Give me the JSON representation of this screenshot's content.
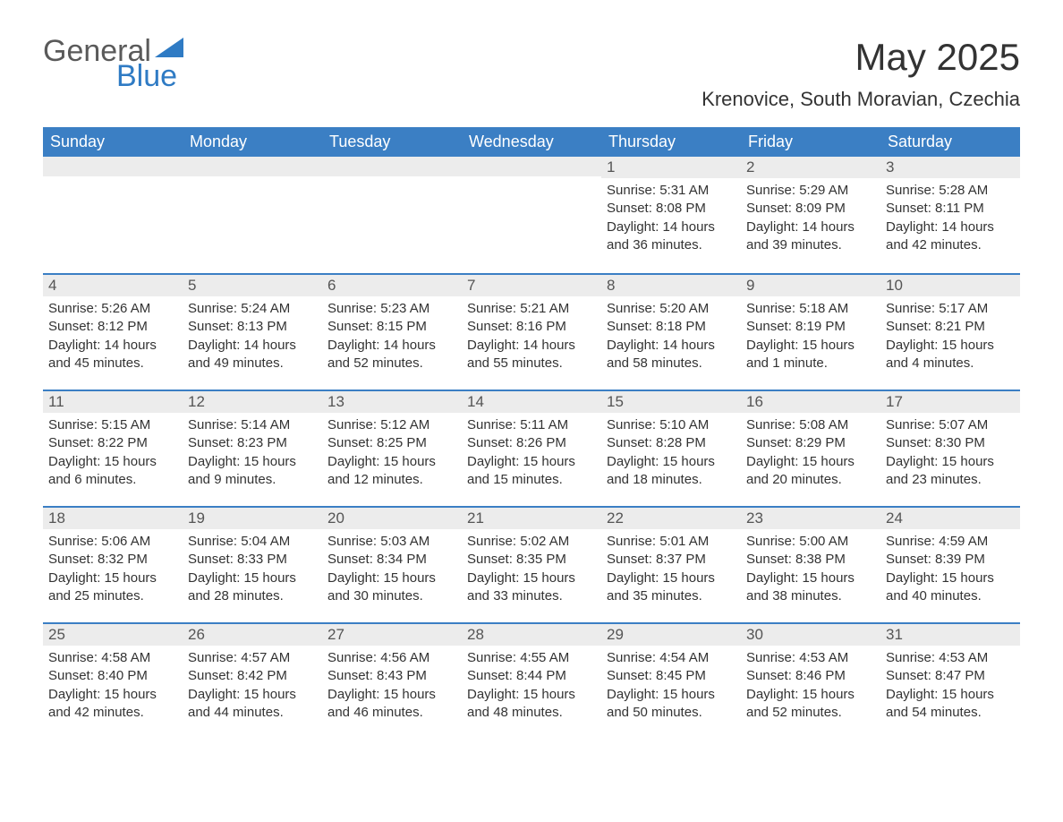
{
  "logo": {
    "word1": "General",
    "word2": "Blue",
    "triangle_color": "#2f7bc4"
  },
  "title": "May 2025",
  "location": "Krenovice, South Moravian, Czechia",
  "colors": {
    "header_bg": "#3b7fc4",
    "header_text": "#ffffff",
    "daybar_bg": "#ececec",
    "daybar_border": "#3b7fc4",
    "body_text": "#333333",
    "page_bg": "#ffffff"
  },
  "weekdays": [
    "Sunday",
    "Monday",
    "Tuesday",
    "Wednesday",
    "Thursday",
    "Friday",
    "Saturday"
  ],
  "labels": {
    "sunrise": "Sunrise:",
    "sunset": "Sunset:",
    "daylight": "Daylight:"
  },
  "weeks": [
    [
      null,
      null,
      null,
      null,
      {
        "day": "1",
        "sunrise": "5:31 AM",
        "sunset": "8:08 PM",
        "dl1": "14 hours",
        "dl2": "and 36 minutes."
      },
      {
        "day": "2",
        "sunrise": "5:29 AM",
        "sunset": "8:09 PM",
        "dl1": "14 hours",
        "dl2": "and 39 minutes."
      },
      {
        "day": "3",
        "sunrise": "5:28 AM",
        "sunset": "8:11 PM",
        "dl1": "14 hours",
        "dl2": "and 42 minutes."
      }
    ],
    [
      {
        "day": "4",
        "sunrise": "5:26 AM",
        "sunset": "8:12 PM",
        "dl1": "14 hours",
        "dl2": "and 45 minutes."
      },
      {
        "day": "5",
        "sunrise": "5:24 AM",
        "sunset": "8:13 PM",
        "dl1": "14 hours",
        "dl2": "and 49 minutes."
      },
      {
        "day": "6",
        "sunrise": "5:23 AM",
        "sunset": "8:15 PM",
        "dl1": "14 hours",
        "dl2": "and 52 minutes."
      },
      {
        "day": "7",
        "sunrise": "5:21 AM",
        "sunset": "8:16 PM",
        "dl1": "14 hours",
        "dl2": "and 55 minutes."
      },
      {
        "day": "8",
        "sunrise": "5:20 AM",
        "sunset": "8:18 PM",
        "dl1": "14 hours",
        "dl2": "and 58 minutes."
      },
      {
        "day": "9",
        "sunrise": "5:18 AM",
        "sunset": "8:19 PM",
        "dl1": "15 hours",
        "dl2": "and 1 minute."
      },
      {
        "day": "10",
        "sunrise": "5:17 AM",
        "sunset": "8:21 PM",
        "dl1": "15 hours",
        "dl2": "and 4 minutes."
      }
    ],
    [
      {
        "day": "11",
        "sunrise": "5:15 AM",
        "sunset": "8:22 PM",
        "dl1": "15 hours",
        "dl2": "and 6 minutes."
      },
      {
        "day": "12",
        "sunrise": "5:14 AM",
        "sunset": "8:23 PM",
        "dl1": "15 hours",
        "dl2": "and 9 minutes."
      },
      {
        "day": "13",
        "sunrise": "5:12 AM",
        "sunset": "8:25 PM",
        "dl1": "15 hours",
        "dl2": "and 12 minutes."
      },
      {
        "day": "14",
        "sunrise": "5:11 AM",
        "sunset": "8:26 PM",
        "dl1": "15 hours",
        "dl2": "and 15 minutes."
      },
      {
        "day": "15",
        "sunrise": "5:10 AM",
        "sunset": "8:28 PM",
        "dl1": "15 hours",
        "dl2": "and 18 minutes."
      },
      {
        "day": "16",
        "sunrise": "5:08 AM",
        "sunset": "8:29 PM",
        "dl1": "15 hours",
        "dl2": "and 20 minutes."
      },
      {
        "day": "17",
        "sunrise": "5:07 AM",
        "sunset": "8:30 PM",
        "dl1": "15 hours",
        "dl2": "and 23 minutes."
      }
    ],
    [
      {
        "day": "18",
        "sunrise": "5:06 AM",
        "sunset": "8:32 PM",
        "dl1": "15 hours",
        "dl2": "and 25 minutes."
      },
      {
        "day": "19",
        "sunrise": "5:04 AM",
        "sunset": "8:33 PM",
        "dl1": "15 hours",
        "dl2": "and 28 minutes."
      },
      {
        "day": "20",
        "sunrise": "5:03 AM",
        "sunset": "8:34 PM",
        "dl1": "15 hours",
        "dl2": "and 30 minutes."
      },
      {
        "day": "21",
        "sunrise": "5:02 AM",
        "sunset": "8:35 PM",
        "dl1": "15 hours",
        "dl2": "and 33 minutes."
      },
      {
        "day": "22",
        "sunrise": "5:01 AM",
        "sunset": "8:37 PM",
        "dl1": "15 hours",
        "dl2": "and 35 minutes."
      },
      {
        "day": "23",
        "sunrise": "5:00 AM",
        "sunset": "8:38 PM",
        "dl1": "15 hours",
        "dl2": "and 38 minutes."
      },
      {
        "day": "24",
        "sunrise": "4:59 AM",
        "sunset": "8:39 PM",
        "dl1": "15 hours",
        "dl2": "and 40 minutes."
      }
    ],
    [
      {
        "day": "25",
        "sunrise": "4:58 AM",
        "sunset": "8:40 PM",
        "dl1": "15 hours",
        "dl2": "and 42 minutes."
      },
      {
        "day": "26",
        "sunrise": "4:57 AM",
        "sunset": "8:42 PM",
        "dl1": "15 hours",
        "dl2": "and 44 minutes."
      },
      {
        "day": "27",
        "sunrise": "4:56 AM",
        "sunset": "8:43 PM",
        "dl1": "15 hours",
        "dl2": "and 46 minutes."
      },
      {
        "day": "28",
        "sunrise": "4:55 AM",
        "sunset": "8:44 PM",
        "dl1": "15 hours",
        "dl2": "and 48 minutes."
      },
      {
        "day": "29",
        "sunrise": "4:54 AM",
        "sunset": "8:45 PM",
        "dl1": "15 hours",
        "dl2": "and 50 minutes."
      },
      {
        "day": "30",
        "sunrise": "4:53 AM",
        "sunset": "8:46 PM",
        "dl1": "15 hours",
        "dl2": "and 52 minutes."
      },
      {
        "day": "31",
        "sunrise": "4:53 AM",
        "sunset": "8:47 PM",
        "dl1": "15 hours",
        "dl2": "and 54 minutes."
      }
    ]
  ]
}
